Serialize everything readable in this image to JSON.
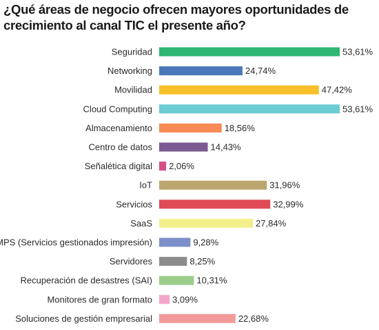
{
  "chart_data": {
    "type": "bar",
    "orientation": "horizontal",
    "title": "¿Qué áreas de negocio ofrecen mayores oportunidades de crecimiento al canal TIC el presente año?",
    "categories": [
      "Seguridad",
      "Networking",
      "Movilidad",
      "Cloud Computing",
      "Almacenamiento",
      "Centro de datos",
      "Señalética digital",
      "IoT",
      "Servicios",
      "SaaS",
      "MPS (Servicios gestionados impresión)",
      "Servidores",
      "Recuperación de desastres (SAI)",
      "Monitores de gran formato",
      "Soluciones de gestión empresarial"
    ],
    "values": [
      53.61,
      24.74,
      47.42,
      53.61,
      18.56,
      14.43,
      2.06,
      31.96,
      32.99,
      27.84,
      9.28,
      8.25,
      10.31,
      3.09,
      22.68
    ],
    "value_labels": [
      "53,61%",
      "24,74%",
      "47,42%",
      "53,61%",
      "18,56%",
      "14,43%",
      "2,06%",
      "31,96%",
      "32,99%",
      "27,84%",
      "9,28%",
      "8,25%",
      "10,31%",
      "3,09%",
      "22,68%"
    ],
    "colors": [
      "#2fb673",
      "#4a78b8",
      "#f7c02a",
      "#6ccbd3",
      "#f78a55",
      "#7b5a91",
      "#d64d86",
      "#bba66f",
      "#e04a57",
      "#f3ef8c",
      "#7d8fc9",
      "#8c8c8c",
      "#9ccc8a",
      "#f4a6c9",
      "#f29a9a"
    ],
    "xlim": [
      0,
      53.61
    ],
    "grid": false,
    "legend": "none"
  }
}
